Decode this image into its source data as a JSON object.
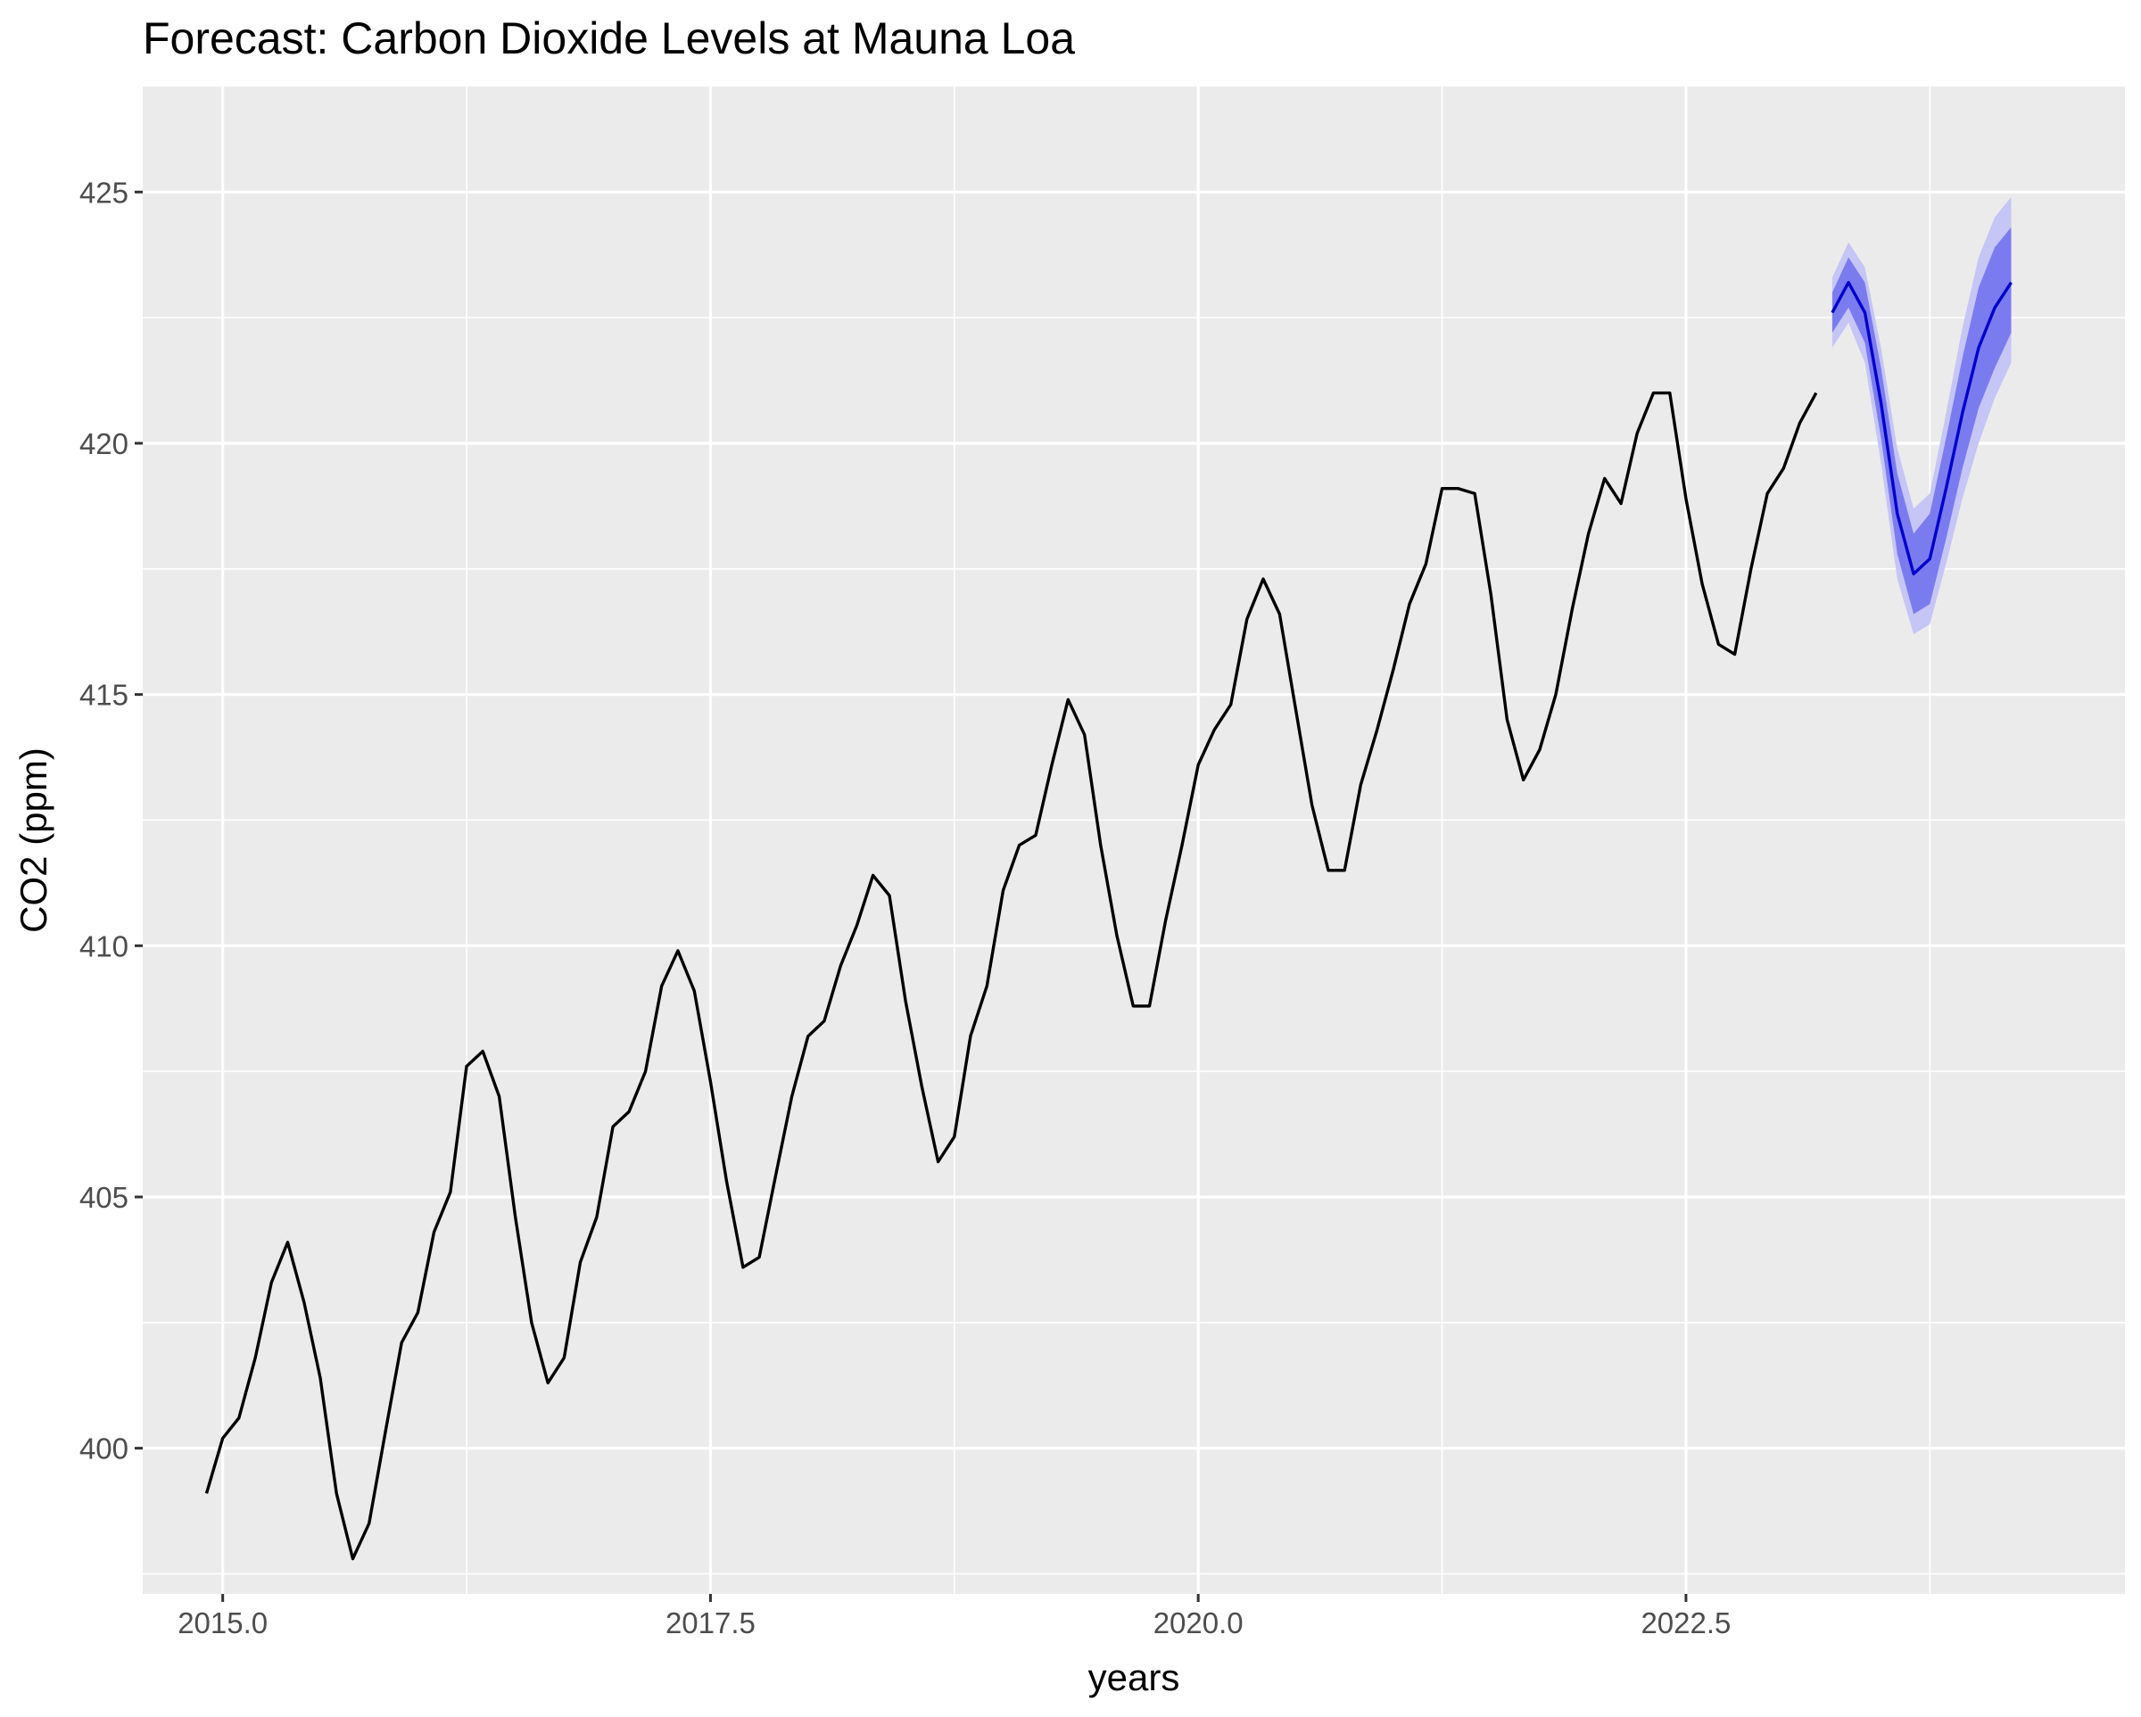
{
  "chart_data": {
    "type": "line",
    "title": "Forecast: Carbon Dioxide Levels at Mauna Loa",
    "xlabel": "years",
    "ylabel": "CO2 (ppm)",
    "xlim": [
      2014.59,
      2024.75
    ],
    "ylim": [
      397.1,
      427.1
    ],
    "x_ticks": [
      2015.0,
      2017.5,
      2020.0,
      2022.5
    ],
    "x_tick_labels": [
      "2015.0",
      "2017.5",
      "2020.0",
      "2022.5"
    ],
    "y_ticks": [
      400,
      405,
      410,
      415,
      420,
      425
    ],
    "y_tick_labels": [
      "400",
      "405",
      "410",
      "415",
      "420",
      "425"
    ],
    "grid": true,
    "legend": "none",
    "colors": {
      "panel_background": "#ebebeb",
      "grid_line": "#ffffff",
      "observed_line": "#000000",
      "forecast_line": "#0000cc",
      "band_80": "#7b7bf0",
      "band_95": "#c5c5f6"
    },
    "series": [
      {
        "type": "line",
        "color": "#000000",
        "x": [
          2014.917,
          2015.0,
          2015.083,
          2015.167,
          2015.25,
          2015.333,
          2015.417,
          2015.5,
          2015.583,
          2015.667,
          2015.75,
          2015.833,
          2015.917,
          2016.0,
          2016.083,
          2016.167,
          2016.25,
          2016.333,
          2016.417,
          2016.5,
          2016.583,
          2016.667,
          2016.75,
          2016.833,
          2016.917,
          2017.0,
          2017.083,
          2017.167,
          2017.25,
          2017.333,
          2017.417,
          2017.5,
          2017.583,
          2017.667,
          2017.75,
          2017.833,
          2017.917,
          2018.0,
          2018.083,
          2018.167,
          2018.25,
          2018.333,
          2018.417,
          2018.5,
          2018.583,
          2018.667,
          2018.75,
          2018.833,
          2018.917,
          2019.0,
          2019.083,
          2019.167,
          2019.25,
          2019.333,
          2019.417,
          2019.5,
          2019.583,
          2019.667,
          2019.75,
          2019.833,
          2019.917,
          2020.0,
          2020.083,
          2020.167,
          2020.25,
          2020.333,
          2020.417,
          2020.5,
          2020.583,
          2020.667,
          2020.75,
          2020.833,
          2020.917,
          2021.0,
          2021.083,
          2021.167,
          2021.25,
          2021.333,
          2021.417,
          2021.5,
          2021.583,
          2021.667,
          2021.75,
          2021.833,
          2021.917,
          2022.0,
          2022.083,
          2022.167,
          2022.25,
          2022.333,
          2022.417,
          2022.5,
          2022.583,
          2022.667,
          2022.75,
          2022.833,
          2022.917,
          2023.0,
          2023.083,
          2023.167
        ],
        "y": [
          399.1,
          400.2,
          400.6,
          401.8,
          403.3,
          404.1,
          402.9,
          401.4,
          399.1,
          397.8,
          398.5,
          400.3,
          402.1,
          402.7,
          404.3,
          405.1,
          407.6,
          407.9,
          407.0,
          404.6,
          402.5,
          401.3,
          401.8,
          403.7,
          404.6,
          406.4,
          406.7,
          407.5,
          409.2,
          409.9,
          409.1,
          407.3,
          405.3,
          403.6,
          403.8,
          405.4,
          407.0,
          408.2,
          408.5,
          409.6,
          410.4,
          411.4,
          411.0,
          408.9,
          407.2,
          405.7,
          406.2,
          408.2,
          409.2,
          411.1,
          412.0,
          412.2,
          413.6,
          414.9,
          414.2,
          412.0,
          410.2,
          408.8,
          408.8,
          410.5,
          412.0,
          413.6,
          414.3,
          414.8,
          416.5,
          417.3,
          416.6,
          414.7,
          412.8,
          411.5,
          411.5,
          413.2,
          414.3,
          415.5,
          416.8,
          417.6,
          419.1,
          419.1,
          419.0,
          417.0,
          414.5,
          413.3,
          413.9,
          415.0,
          416.7,
          418.2,
          419.3,
          418.8,
          420.2,
          421.0,
          421.0,
          418.9,
          417.2,
          416.0,
          415.8,
          417.5,
          419.0,
          419.5,
          420.4,
          421.0
        ]
      }
    ],
    "forecast": {
      "type": "line",
      "color": "#0000cc",
      "x": [
        2023.25,
        2023.333,
        2023.417,
        2023.5,
        2023.583,
        2023.667,
        2023.75,
        2023.833,
        2023.917,
        2024.0,
        2024.083,
        2024.167
      ],
      "y": [
        422.6,
        423.2,
        422.6,
        420.8,
        418.6,
        417.4,
        417.7,
        419.1,
        420.6,
        421.9,
        422.7,
        423.2
      ],
      "lo80": [
        422.2,
        422.7,
        422.0,
        420.1,
        417.8,
        416.6,
        416.8,
        418.1,
        419.5,
        420.7,
        421.5,
        422.2
      ],
      "hi80": [
        423.0,
        423.7,
        423.2,
        421.5,
        419.4,
        418.2,
        418.6,
        420.1,
        421.7,
        423.1,
        423.9,
        424.3
      ],
      "lo95": [
        421.9,
        422.4,
        421.6,
        419.6,
        417.3,
        416.2,
        416.4,
        417.6,
        418.9,
        420.0,
        420.9,
        421.6
      ],
      "hi95": [
        423.3,
        424.0,
        423.5,
        421.9,
        419.9,
        418.7,
        419.0,
        420.6,
        422.3,
        423.7,
        424.5,
        424.9
      ]
    }
  }
}
